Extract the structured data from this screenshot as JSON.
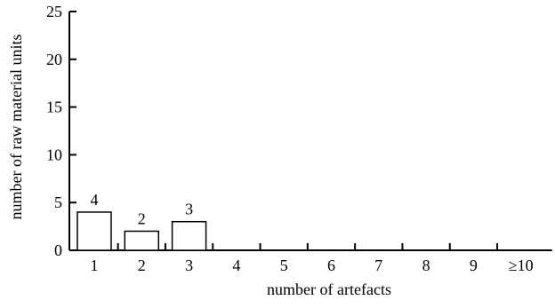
{
  "chart_data": {
    "type": "bar",
    "categories": [
      "1",
      "2",
      "3",
      "4",
      "5",
      "6",
      "7",
      "8",
      "9",
      "≥10"
    ],
    "values": [
      4,
      2,
      3,
      0,
      0,
      0,
      0,
      0,
      0,
      0
    ],
    "data_labels": [
      "4",
      "2",
      "3",
      "",
      "",
      "",
      "",
      "",
      "",
      ""
    ],
    "xlabel": "number of artefacts",
    "ylabel": "number of raw material units",
    "ylim": [
      0,
      25
    ],
    "yticks": [
      "0",
      "5",
      "10",
      "15",
      "20",
      "25"
    ],
    "grid": false,
    "bar_fill": "#ffffff",
    "bar_stroke": "#000000"
  }
}
